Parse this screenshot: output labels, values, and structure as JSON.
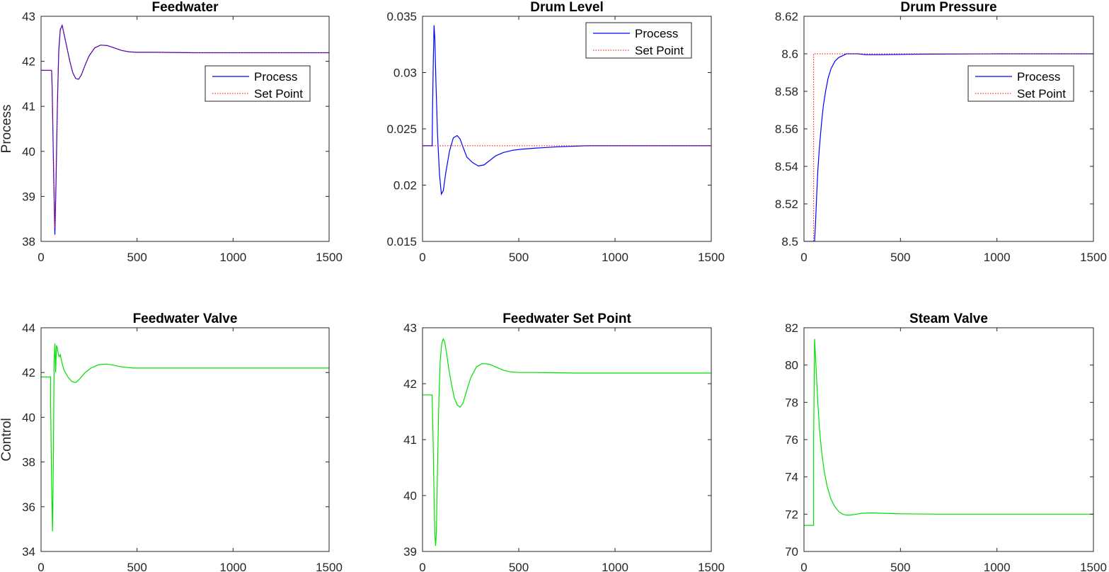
{
  "chart_data": [
    {
      "id": "feedwater",
      "type": "line",
      "title": "Feedwater",
      "ylabel": "Process",
      "xlim": [
        0,
        1500
      ],
      "ylim": [
        38,
        43
      ],
      "xticks": [
        0,
        500,
        1000,
        1500
      ],
      "yticks": [
        38,
        39,
        40,
        41,
        42,
        43
      ],
      "grid": false,
      "legend": {
        "position": "inside-upper-right",
        "entries": [
          "Process",
          "Set Point"
        ]
      },
      "series": [
        {
          "name": "Process",
          "color": "#0000ff",
          "style": "solid",
          "x": [
            0,
            55,
            58,
            62,
            66,
            72,
            78,
            85,
            92,
            100,
            110,
            120,
            135,
            150,
            165,
            180,
            195,
            210,
            230,
            250,
            280,
            310,
            345,
            380,
            420,
            460,
            500,
            600,
            800,
            1000,
            1200,
            1500
          ],
          "y": [
            41.8,
            41.8,
            41.4,
            40.4,
            39.4,
            38.15,
            39.3,
            41.0,
            42.2,
            42.7,
            42.8,
            42.6,
            42.3,
            42.0,
            41.75,
            41.62,
            41.6,
            41.7,
            41.92,
            42.12,
            42.3,
            42.36,
            42.35,
            42.3,
            42.24,
            42.21,
            42.2,
            42.2,
            42.19,
            42.19,
            42.19,
            42.19
          ]
        },
        {
          "name": "Set Point",
          "color": "#ff0000",
          "style": "dotted",
          "x": [
            0,
            55,
            58,
            62,
            66,
            72,
            78,
            85,
            92,
            100,
            110,
            120,
            135,
            150,
            165,
            180,
            195,
            210,
            230,
            250,
            280,
            310,
            345,
            380,
            420,
            460,
            500,
            600,
            800,
            1000,
            1200,
            1500
          ],
          "y": [
            41.8,
            41.8,
            41.3,
            40.3,
            39.3,
            38.3,
            39.5,
            41.1,
            42.3,
            42.72,
            42.8,
            42.6,
            42.3,
            42.0,
            41.75,
            41.62,
            41.6,
            41.7,
            41.92,
            42.12,
            42.3,
            42.36,
            42.35,
            42.3,
            42.24,
            42.21,
            42.2,
            42.2,
            42.19,
            42.19,
            42.19,
            42.19
          ]
        }
      ]
    },
    {
      "id": "drum-level",
      "type": "line",
      "title": "Drum Level",
      "xlim": [
        0,
        1500
      ],
      "ylim": [
        0.015,
        0.035
      ],
      "xticks": [
        0,
        500,
        1000,
        1500
      ],
      "yticks": [
        0.015,
        0.02,
        0.025,
        0.03,
        0.035
      ],
      "grid": false,
      "legend": {
        "position": "inside-upper-right",
        "entries": [
          "Process",
          "Set Point"
        ]
      },
      "series": [
        {
          "name": "Process",
          "color": "#0000ff",
          "style": "solid",
          "x": [
            0,
            50,
            52,
            56,
            60,
            64,
            70,
            78,
            88,
            98,
            108,
            120,
            140,
            160,
            180,
            195,
            210,
            230,
            260,
            290,
            320,
            350,
            380,
            420,
            470,
            520,
            600,
            700,
            850,
            1000,
            1200,
            1500
          ],
          "y": [
            0.0235,
            0.0235,
            0.0265,
            0.031,
            0.0342,
            0.033,
            0.029,
            0.0245,
            0.021,
            0.0192,
            0.0195,
            0.021,
            0.023,
            0.0242,
            0.0244,
            0.0241,
            0.0234,
            0.0225,
            0.022,
            0.0217,
            0.0218,
            0.0222,
            0.0226,
            0.0229,
            0.0231,
            0.0232,
            0.0233,
            0.0234,
            0.0235,
            0.0235,
            0.0235,
            0.0235
          ]
        },
        {
          "name": "Set Point",
          "color": "#ff0000",
          "style": "dotted",
          "x": [
            0,
            1500
          ],
          "y": [
            0.0235,
            0.0235
          ]
        }
      ]
    },
    {
      "id": "drum-pressure",
      "type": "line",
      "title": "Drum Pressure",
      "xlim": [
        0,
        1500
      ],
      "ylim": [
        8.5,
        8.62
      ],
      "xticks": [
        0,
        500,
        1000,
        1500
      ],
      "yticks": [
        8.5,
        8.52,
        8.54,
        8.56,
        8.58,
        8.6,
        8.62
      ],
      "grid": false,
      "legend": {
        "position": "inside-upper-right",
        "entries": [
          "Process",
          "Set Point"
        ]
      },
      "series": [
        {
          "name": "Process",
          "color": "#0000ff",
          "style": "solid",
          "x": [
            0,
            55,
            60,
            66,
            72,
            80,
            90,
            100,
            112,
            125,
            140,
            160,
            180,
            200,
            220,
            245,
            280,
            320,
            400,
            600,
            1000,
            1500
          ],
          "y": [
            8.5,
            8.5,
            8.51,
            8.525,
            8.538,
            8.55,
            8.562,
            8.572,
            8.58,
            8.587,
            8.592,
            8.596,
            8.598,
            8.599,
            8.6,
            8.6,
            8.6,
            8.5995,
            8.5995,
            8.5998,
            8.6,
            8.6
          ]
        },
        {
          "name": "Set Point",
          "color": "#ff0000",
          "style": "dotted",
          "x": [
            0,
            50,
            50,
            1500
          ],
          "y": [
            8.5,
            8.5,
            8.6,
            8.6
          ]
        }
      ]
    },
    {
      "id": "feedwater-valve",
      "type": "line",
      "title": "Feedwater Valve",
      "ylabel": "Control",
      "xlim": [
        0,
        1500
      ],
      "ylim": [
        34,
        44
      ],
      "xticks": [
        0,
        500,
        1000,
        1500
      ],
      "yticks": [
        34,
        36,
        38,
        40,
        42,
        44
      ],
      "grid": false,
      "series": [
        {
          "name": "",
          "color": "#00e000",
          "style": "solid",
          "x": [
            0,
            50,
            50,
            55,
            60,
            64,
            68,
            72,
            76,
            80,
            85,
            90,
            95,
            100,
            110,
            120,
            140,
            160,
            180,
            200,
            230,
            260,
            300,
            340,
            380,
            420,
            480,
            550,
            700,
            1000,
            1500
          ],
          "y": [
            41.8,
            41.8,
            40.5,
            37.0,
            34.9,
            38.0,
            42.5,
            43.3,
            42.0,
            43.2,
            43.1,
            42.8,
            42.7,
            42.8,
            42.4,
            42.1,
            41.8,
            41.6,
            41.55,
            41.7,
            42.0,
            42.2,
            42.35,
            42.38,
            42.32,
            42.25,
            42.2,
            42.2,
            42.2,
            42.2,
            42.2
          ]
        }
      ]
    },
    {
      "id": "feedwater-set-point",
      "type": "line",
      "title": "Feedwater Set Point",
      "xlim": [
        0,
        1500
      ],
      "ylim": [
        39,
        43
      ],
      "xticks": [
        0,
        500,
        1000,
        1500
      ],
      "yticks": [
        39,
        40,
        41,
        42,
        43
      ],
      "grid": false,
      "series": [
        {
          "name": "",
          "color": "#00e000",
          "style": "solid",
          "x": [
            0,
            50,
            50,
            55,
            60,
            64,
            68,
            72,
            78,
            85,
            92,
            100,
            108,
            115,
            125,
            135,
            150,
            165,
            180,
            195,
            210,
            230,
            250,
            280,
            310,
            345,
            380,
            420,
            460,
            500,
            600,
            800,
            1000,
            1200,
            1500
          ],
          "y": [
            41.8,
            41.8,
            41.78,
            41.0,
            40.0,
            39.3,
            39.1,
            39.35,
            40.5,
            41.7,
            42.4,
            42.72,
            42.8,
            42.75,
            42.55,
            42.3,
            42.0,
            41.75,
            41.62,
            41.58,
            41.65,
            41.88,
            42.1,
            42.3,
            42.36,
            42.35,
            42.3,
            42.24,
            42.21,
            42.2,
            42.2,
            42.19,
            42.19,
            42.19,
            42.19
          ]
        }
      ]
    },
    {
      "id": "steam-valve",
      "type": "line",
      "title": "Steam Valve",
      "xlim": [
        0,
        1500
      ],
      "ylim": [
        70,
        82
      ],
      "xticks": [
        0,
        500,
        1000,
        1500
      ],
      "yticks": [
        70,
        72,
        74,
        76,
        78,
        80,
        82
      ],
      "grid": false,
      "series": [
        {
          "name": "",
          "color": "#00e000",
          "style": "solid",
          "x": [
            0,
            50,
            50,
            55,
            62,
            70,
            80,
            92,
            105,
            120,
            140,
            160,
            180,
            200,
            220,
            240,
            270,
            300,
            350,
            400,
            500,
            700,
            1000,
            1500
          ],
          "y": [
            71.4,
            71.4,
            76.0,
            81.4,
            80.0,
            78.3,
            76.6,
            75.3,
            74.3,
            73.5,
            72.8,
            72.4,
            72.15,
            72.0,
            71.95,
            71.95,
            72.0,
            72.05,
            72.07,
            72.05,
            72.02,
            72.0,
            72.0,
            72.0
          ]
        }
      ]
    }
  ]
}
